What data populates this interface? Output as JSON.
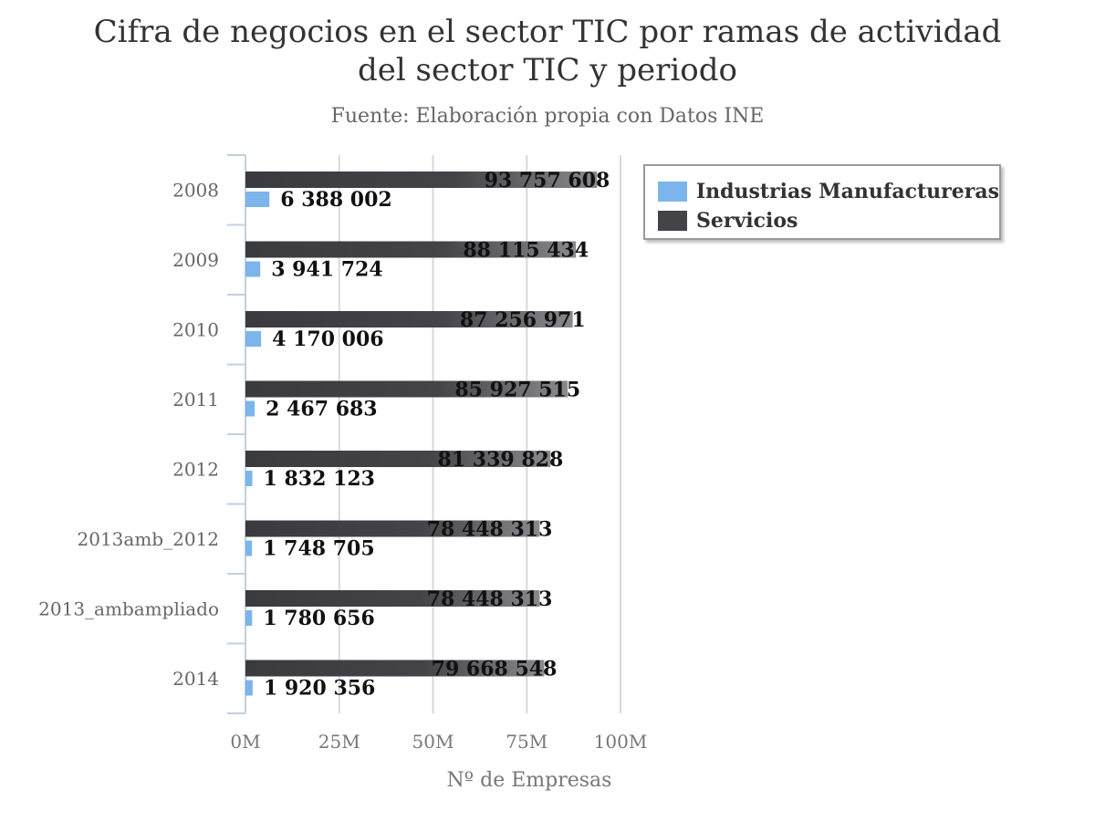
{
  "chart_data": {
    "type": "bar",
    "orientation": "horizontal",
    "title": "Cifra de negocios en el sector TIC por ramas de actividad del sector TIC y periodo",
    "subtitle": "Fuente: Elaboración propia con Datos INE",
    "xlabel": "Nº de Empresas",
    "xlim": [
      0,
      100000000
    ],
    "xticks": [
      "0M",
      "25M",
      "50M",
      "75M",
      "100M"
    ],
    "grid": true,
    "legend_position": "top-right",
    "categories": [
      "2008",
      "2009",
      "2010",
      "2011",
      "2012",
      "2013amb_2012",
      "2013_ambampliado",
      "2014"
    ],
    "series": [
      {
        "name": "Servicios",
        "color": "#434348",
        "values": [
          93757608,
          88115434,
          87256971,
          85927515,
          81339828,
          78448313,
          78448313,
          79668548
        ],
        "labels": [
          "93 757 608",
          "88 115 434",
          "87 256 971",
          "85 927 515",
          "81 339 828",
          "78 448 313",
          "78 448 313",
          "79 668 548"
        ]
      },
      {
        "name": "Industrias Manufactureras",
        "color": "#7cb5ec",
        "values": [
          6388002,
          3941724,
          4170006,
          2467683,
          1832123,
          1748705,
          1780656,
          1920356
        ],
        "labels": [
          "6 388 002",
          "3 941 724",
          "4 170 006",
          "2 467 683",
          "1 832 123",
          "1 748 705",
          "1 780 656",
          "1 920 356"
        ]
      }
    ]
  }
}
